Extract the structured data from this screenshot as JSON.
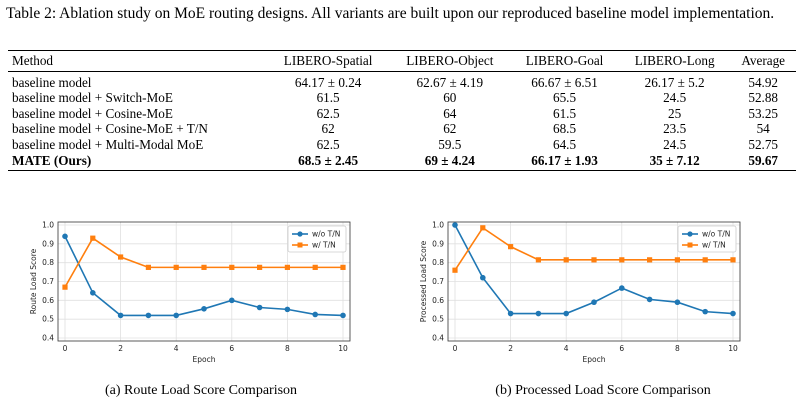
{
  "caption": "Table 2: Ablation study on MoE routing designs. All variants are built upon our reproduced baseline model implementation.",
  "table": {
    "headers": [
      "Method",
      "LIBERO-Spatial",
      "LIBERO-Object",
      "LIBERO-Goal",
      "LIBERO-Long",
      "Average"
    ],
    "rows": [
      [
        "baseline model",
        "64.17 ± 0.24",
        "62.67 ± 4.19",
        "66.67 ± 6.51",
        "26.17 ± 5.2",
        "54.92"
      ],
      [
        "baseline model + Switch-MoE",
        "61.5",
        "60",
        "65.5",
        "24.5",
        "52.88"
      ],
      [
        "baseline model + Cosine-MoE",
        "62.5",
        "64",
        "61.5",
        "25",
        "53.25"
      ],
      [
        "baseline model + Cosine-MoE + T/N",
        "62",
        "62",
        "68.5",
        "23.5",
        "54"
      ],
      [
        "baseline model + Multi-Modal MoE",
        "62.5",
        "59.5",
        "64.5",
        "24.5",
        "52.75"
      ],
      [
        "MATE (Ours)",
        "68.5 ± 2.45",
        "69 ± 4.24",
        "66.17 ± 1.93",
        "35 ± 7.12",
        "59.67"
      ]
    ]
  },
  "chart_data": [
    {
      "type": "line",
      "title": "",
      "xlabel": "Epoch",
      "ylabel": "Route Load Score",
      "xlim": [
        0,
        10
      ],
      "ylim": [
        0.4,
        1.0
      ],
      "xticks": [
        "0",
        "2",
        "4",
        "6",
        "8",
        "10"
      ],
      "yticks": [
        "0.4",
        "0.5",
        "0.6",
        "0.7",
        "0.8",
        "0.9",
        "1.0"
      ],
      "grid": true,
      "legend": "top-right",
      "x": [
        0,
        1,
        2,
        3,
        4,
        5,
        6,
        7,
        8,
        9,
        10
      ],
      "series": [
        {
          "name": "w/o T/N",
          "color": "#1f77b4",
          "marker": "circle",
          "values": [
            0.94,
            0.64,
            0.52,
            0.52,
            0.52,
            0.555,
            0.6,
            0.562,
            0.552,
            0.525,
            0.52
          ]
        },
        {
          "name": "w/ T/N",
          "color": "#ff7f0e",
          "marker": "square",
          "values": [
            0.67,
            0.93,
            0.83,
            0.775,
            0.775,
            0.775,
            0.775,
            0.775,
            0.775,
            0.775,
            0.775
          ]
        }
      ],
      "caption": "(a) Route Load Score Comparison"
    },
    {
      "type": "line",
      "title": "",
      "xlabel": "Epoch",
      "ylabel": "Processed Load Score",
      "xlim": [
        0,
        10
      ],
      "ylim": [
        0.4,
        1.0
      ],
      "xticks": [
        "0",
        "2",
        "4",
        "6",
        "8",
        "10"
      ],
      "yticks": [
        "0.4",
        "0.5",
        "0.6",
        "0.7",
        "0.8",
        "0.9",
        "1.0"
      ],
      "grid": true,
      "legend": "top-right",
      "x": [
        0,
        1,
        2,
        3,
        4,
        5,
        6,
        7,
        8,
        9,
        10
      ],
      "series": [
        {
          "name": "w/o T/N",
          "color": "#1f77b4",
          "marker": "circle",
          "values": [
            1.0,
            0.72,
            0.53,
            0.53,
            0.53,
            0.59,
            0.665,
            0.605,
            0.59,
            0.54,
            0.53
          ]
        },
        {
          "name": "w/ T/N",
          "color": "#ff7f0e",
          "marker": "square",
          "values": [
            0.76,
            0.985,
            0.885,
            0.815,
            0.815,
            0.815,
            0.815,
            0.815,
            0.815,
            0.815,
            0.815
          ]
        }
      ],
      "caption": "(b) Processed Load Score Comparison"
    }
  ]
}
